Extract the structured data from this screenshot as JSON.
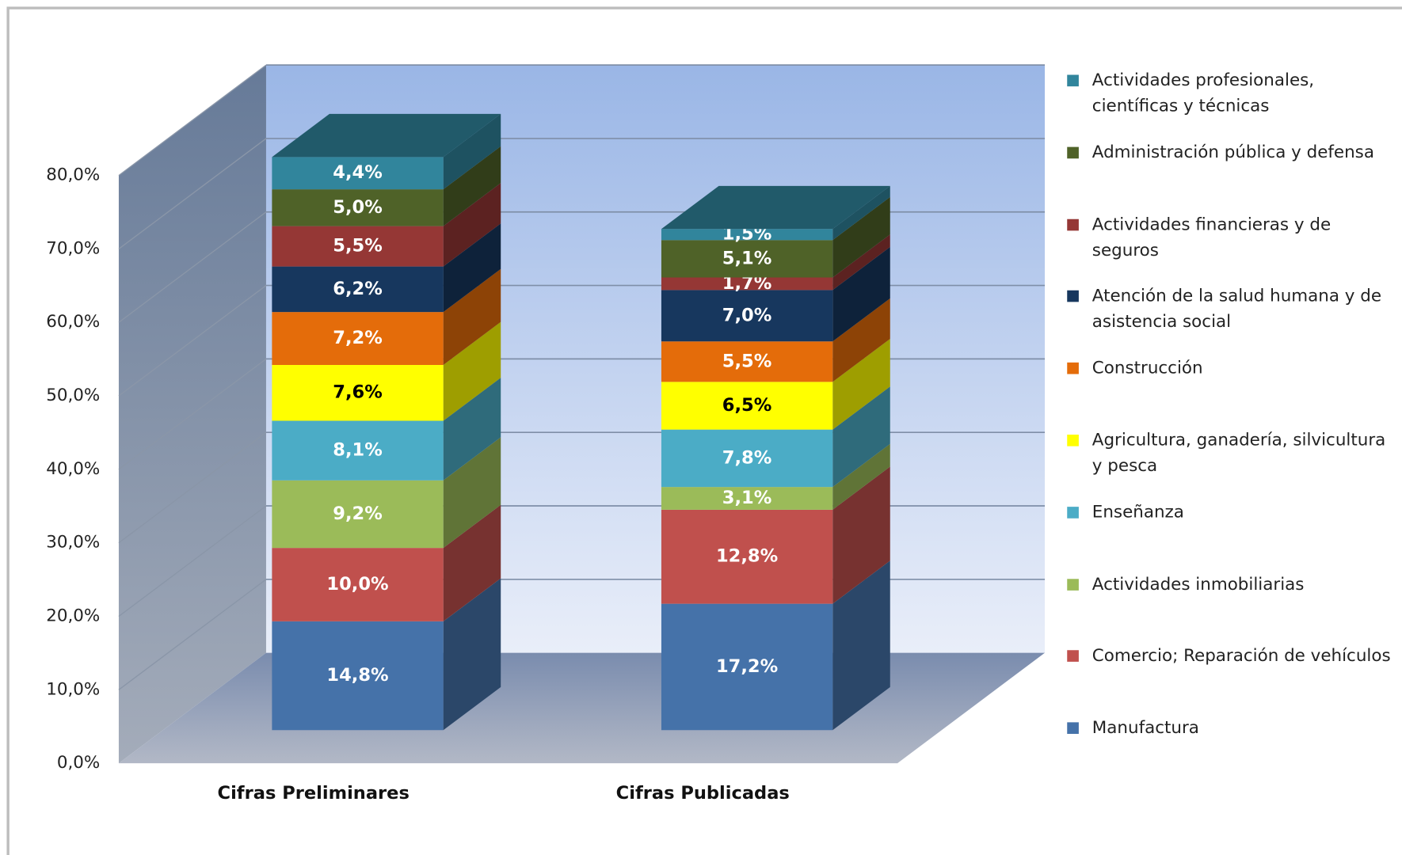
{
  "chart_data": {
    "type": "bar3d_stacked",
    "categories": [
      "Cifras Preliminares",
      "Cifras Publicadas"
    ],
    "series": [
      {
        "name": "Manufactura",
        "color": "#4572a9",
        "values": [
          14.8,
          17.2
        ],
        "value_labels": [
          "14,8%",
          "17,2%"
        ]
      },
      {
        "name": "Comercio; Reparación de vehículos",
        "color": "#c0504d",
        "values": [
          10.0,
          12.8
        ],
        "value_labels": [
          "10,0%",
          "12,8%"
        ]
      },
      {
        "name": "Actividades inmobiliarias",
        "color": "#9bbb59",
        "values": [
          9.2,
          3.1
        ],
        "value_labels": [
          "9,2%",
          "3,1%"
        ]
      },
      {
        "name": "Enseñanza",
        "color": "#4bacc6",
        "values": [
          8.1,
          7.8
        ],
        "value_labels": [
          "8,1%",
          "7,8%"
        ]
      },
      {
        "name": "Agricultura, ganadería, silvicultura y pesca",
        "color": "#ffff00",
        "values": [
          7.6,
          6.5
        ],
        "value_labels": [
          "7,6%",
          "6,5%"
        ]
      },
      {
        "name": "Construcción",
        "color": "#e46c0a",
        "values": [
          7.2,
          5.5
        ],
        "value_labels": [
          "7,2%",
          "5,5%"
        ]
      },
      {
        "name": "Atención de la salud humana y de asistencia social",
        "color": "#17375e",
        "values": [
          6.2,
          7.0
        ],
        "value_labels": [
          "6,2%",
          "7,0%"
        ]
      },
      {
        "name": "Actividades financieras y de seguros",
        "color": "#953735",
        "values": [
          5.5,
          1.7
        ],
        "value_labels": [
          "5,5%",
          "1,7%"
        ]
      },
      {
        "name": "Administración pública y defensa",
        "color": "#4f6228",
        "values": [
          5.0,
          5.1
        ],
        "value_labels": [
          "5,0%",
          "5,1%"
        ]
      },
      {
        "name": "Actividades profesionales, científicas y técnicas",
        "color": "#31859c",
        "values": [
          4.4,
          1.5
        ],
        "value_labels": [
          "4,4%",
          "1,5%"
        ]
      }
    ],
    "ylim": [
      0,
      80
    ],
    "yticks": [
      {
        "value": 0,
        "label": "0,0%"
      },
      {
        "value": 10,
        "label": "10,0%"
      },
      {
        "value": 20,
        "label": "20,0%"
      },
      {
        "value": 30,
        "label": "30,0%"
      },
      {
        "value": 40,
        "label": "40,0%"
      },
      {
        "value": 50,
        "label": "50,0%"
      },
      {
        "value": 60,
        "label": "60,0%"
      },
      {
        "value": 70,
        "label": "70,0%"
      },
      {
        "value": 80,
        "label": "80,0%"
      }
    ],
    "grid": true,
    "legend": "right"
  }
}
